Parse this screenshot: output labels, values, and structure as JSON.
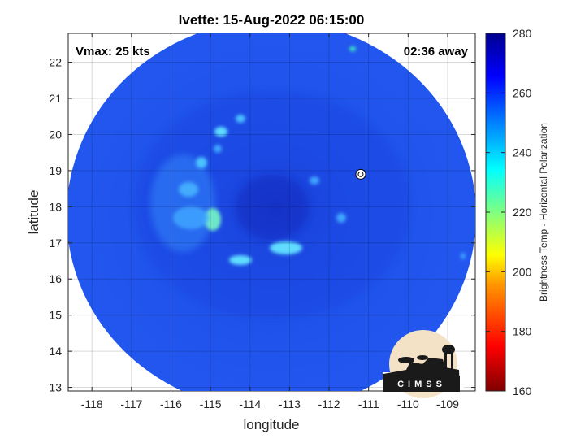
{
  "chart_data": {
    "type": "heatmap",
    "title": "Ivette: 15-Aug-2022 06:15:00",
    "xlabel": "longitude",
    "ylabel": "latitude",
    "xlim": [
      -118.6,
      -108.3
    ],
    "ylim": [
      12.9,
      22.8
    ],
    "xticks": [
      -118,
      -117,
      -116,
      -115,
      -114,
      -113,
      -112,
      -111,
      -110,
      -109
    ],
    "yticks": [
      13,
      14,
      15,
      16,
      17,
      18,
      19,
      20,
      21,
      22
    ],
    "grid": true,
    "annotations": {
      "vmax": "Vmax: 25 kts",
      "time_offset": "02:36 away"
    },
    "storm_center": {
      "lon": -111.2,
      "lat": 18.9
    },
    "colorbar": {
      "label": "Brightness Temp - Horizontal Polarization",
      "range": [
        160,
        280
      ],
      "ticks": [
        280,
        260,
        240,
        220,
        200,
        180,
        160
      ]
    },
    "logo_text": "CIMSS"
  },
  "colors": {
    "background_field": "#1f4fe6",
    "colormap": [
      "#7f0000",
      "#ff0000",
      "#ff9900",
      "#ffff00",
      "#80ff80",
      "#00ffff",
      "#0080ff",
      "#0000ff",
      "#00008f"
    ]
  }
}
